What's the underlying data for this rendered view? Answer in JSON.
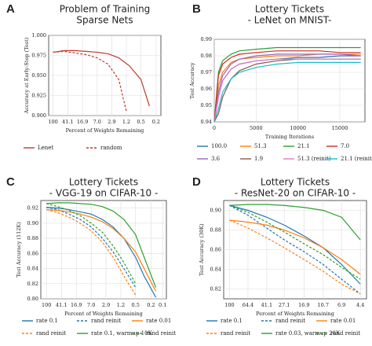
{
  "chart_data": [
    {
      "type": "line",
      "panel_label": "A",
      "title": [
        "Problem of Training",
        "Sparse Nets"
      ],
      "x_label": "Percent of Weights Remaining",
      "y_label": "Accuracy at Early-Stop (Test)",
      "x_log": true,
      "xlim": [
        130,
        0.15
      ],
      "ylim": [
        0.9,
        1.0
      ],
      "grid": true,
      "xticks": [
        100,
        41.1,
        16.9,
        {
          "value": 7.0,
          "label": "7.0"
        },
        2.9,
        1.2,
        0.5,
        0.2
      ],
      "yticks": [
        {
          "value": 0.9,
          "label": "0.900"
        },
        {
          "value": 0.925,
          "label": "0.925"
        },
        {
          "value": 0.95,
          "label": "0.950"
        },
        {
          "value": 0.975,
          "label": "0.975"
        },
        {
          "value": 1.0,
          "label": "1.000"
        }
      ],
      "series": [
        {
          "name": "Lenet",
          "color": "#c0392b",
          "dash": false,
          "x": [
            100,
            51.3,
            26.3,
            13.5,
            7.0,
            3.6,
            1.9,
            1.0,
            0.5,
            0.3
          ],
          "values": [
            0.979,
            0.981,
            0.981,
            0.98,
            0.979,
            0.977,
            0.972,
            0.962,
            0.945,
            0.912
          ]
        },
        {
          "name": "random",
          "color": "#c0392b",
          "dash": true,
          "x": [
            100,
            51.3,
            26.3,
            13.5,
            7.0,
            3.6,
            1.9,
            1.2
          ],
          "values": [
            0.979,
            0.98,
            0.978,
            0.976,
            0.972,
            0.964,
            0.945,
            0.905
          ]
        }
      ]
    },
    {
      "type": "line",
      "panel_label": "B",
      "title": [
        "Lottery Tickets",
        "- LeNet on MNIST-"
      ],
      "x_label": "Training Iterations",
      "y_label": "Test Accuracy",
      "x_log": false,
      "xlim": [
        0,
        18000
      ],
      "ylim": [
        0.94,
        0.99
      ],
      "grid": true,
      "xticks": [
        0,
        5000,
        10000,
        15000
      ],
      "yticks": [
        0.94,
        0.95,
        0.96,
        0.97,
        0.98,
        0.99
      ],
      "series": [
        {
          "name": "100.0",
          "color": "#1f77b4",
          "dash": false,
          "x": [
            0,
            500,
            1000,
            2000,
            3000,
            5000,
            7500,
            10000,
            12500,
            15000,
            17500
          ],
          "values": [
            0.94,
            0.955,
            0.965,
            0.972,
            0.975,
            0.977,
            0.978,
            0.979,
            0.979,
            0.98,
            0.98
          ]
        },
        {
          "name": "51.3",
          "color": "#ff7f0e",
          "dash": false,
          "x": [
            0,
            500,
            1000,
            2000,
            3000,
            5000,
            7500,
            10000,
            12500,
            15000,
            17500
          ],
          "values": [
            0.94,
            0.962,
            0.97,
            0.976,
            0.978,
            0.979,
            0.98,
            0.98,
            0.981,
            0.981,
            0.981
          ]
        },
        {
          "name": "21.1",
          "color": "#2ca02c",
          "dash": false,
          "x": [
            0,
            500,
            1000,
            2000,
            3000,
            5000,
            7500,
            10000,
            12500,
            15000,
            17500
          ],
          "values": [
            0.94,
            0.97,
            0.977,
            0.981,
            0.983,
            0.984,
            0.985,
            0.985,
            0.985,
            0.985,
            0.985
          ]
        },
        {
          "name": "7.0",
          "color": "#d62728",
          "dash": false,
          "x": [
            0,
            500,
            1000,
            2000,
            3000,
            5000,
            7500,
            10000,
            12500,
            15000,
            17500
          ],
          "values": [
            0.94,
            0.968,
            0.975,
            0.979,
            0.981,
            0.982,
            0.983,
            0.983,
            0.983,
            0.982,
            0.982
          ]
        },
        {
          "name": "3.6",
          "color": "#9467bd",
          "dash": false,
          "x": [
            0,
            500,
            1000,
            2000,
            3000,
            5000,
            7500,
            10000,
            12500,
            15000,
            17500
          ],
          "values": [
            0.94,
            0.958,
            0.968,
            0.975,
            0.978,
            0.98,
            0.981,
            0.981,
            0.981,
            0.981,
            0.98
          ]
        },
        {
          "name": "1.9",
          "color": "#8c564b",
          "dash": false,
          "x": [
            0,
            500,
            1000,
            2000,
            3000,
            5000,
            7500,
            10000,
            12500,
            15000,
            17500
          ],
          "values": [
            0.94,
            0.945,
            0.955,
            0.966,
            0.971,
            0.975,
            0.977,
            0.978,
            0.978,
            0.978,
            0.978
          ]
        },
        {
          "name": "51.3 (reinit)",
          "color": "#e377c2",
          "dash": false,
          "x": [
            0,
            500,
            1000,
            2000,
            3000,
            5000,
            7500,
            10000,
            12500,
            15000,
            17500
          ],
          "values": [
            0.94,
            0.955,
            0.965,
            0.972,
            0.975,
            0.977,
            0.978,
            0.978,
            0.978,
            0.978,
            0.978
          ]
        },
        {
          "name": "21.1 (reinit)",
          "color": "#17becf",
          "dash": false,
          "x": [
            0,
            500,
            1000,
            2000,
            3000,
            5000,
            7500,
            10000,
            12500,
            15000,
            17500
          ],
          "values": [
            0.94,
            0.948,
            0.958,
            0.966,
            0.97,
            0.973,
            0.975,
            0.976,
            0.976,
            0.976,
            0.976
          ]
        }
      ]
    },
    {
      "type": "line",
      "panel_label": "C",
      "title": [
        "Lottery Tickets",
        "- VGG-19 on CIFAR-10 -"
      ],
      "x_label": "Percent of Weights Remaining",
      "y_label": "Test Accuracy (112K)",
      "x_log": true,
      "xlim": [
        140,
        0.08
      ],
      "ylim": [
        0.8,
        0.93
      ],
      "grid": true,
      "xticks": [
        100,
        41.1,
        16.9,
        {
          "value": 7.0,
          "label": "7.0"
        },
        2.9,
        1.2,
        0.5,
        0.2,
        0.1
      ],
      "yticks": [
        {
          "value": 0.8,
          "label": "0.80"
        },
        0.82,
        0.84,
        0.86,
        0.88,
        {
          "value": 0.9,
          "label": "0.90"
        },
        0.92
      ],
      "series": [
        {
          "name": "rate 0.1",
          "color": "#1f77b4",
          "dash": false,
          "x": [
            100,
            51.3,
            26.3,
            13.5,
            7.0,
            3.6,
            1.9,
            1.0,
            0.5,
            0.3,
            0.15
          ],
          "values": [
            0.921,
            0.92,
            0.918,
            0.915,
            0.912,
            0.905,
            0.895,
            0.88,
            0.855,
            0.83,
            0.802
          ]
        },
        {
          "name": "rand reinit",
          "color": "#1f77b4",
          "dash": true,
          "x": [
            100,
            51.3,
            26.3,
            13.5,
            7.0,
            3.6,
            1.9,
            1.0,
            0.5
          ],
          "values": [
            0.921,
            0.918,
            0.912,
            0.905,
            0.895,
            0.88,
            0.862,
            0.84,
            0.815
          ]
        },
        {
          "name": "rate 0.01",
          "color": "#ff7f0e",
          "dash": false,
          "x": [
            100,
            51.3,
            26.3,
            13.5,
            7.0,
            3.6,
            1.9,
            1.0,
            0.5,
            0.3,
            0.15
          ],
          "values": [
            0.918,
            0.917,
            0.915,
            0.912,
            0.908,
            0.902,
            0.893,
            0.88,
            0.862,
            0.84,
            0.81
          ]
        },
        {
          "name": "rand reinit",
          "color": "#ff7f0e",
          "dash": true,
          "x": [
            100,
            51.3,
            26.3,
            13.5,
            7.0,
            3.6,
            1.9,
            1.0,
            0.5
          ],
          "values": [
            0.918,
            0.914,
            0.908,
            0.9,
            0.89,
            0.875,
            0.855,
            0.83,
            0.805
          ]
        },
        {
          "name": "rate 0.1, warmup 10K",
          "color": "#2ca02c",
          "dash": false,
          "x": [
            100,
            51.3,
            26.3,
            13.5,
            7.0,
            3.6,
            1.9,
            1.0,
            0.5,
            0.3,
            0.15
          ],
          "values": [
            0.926,
            0.927,
            0.927,
            0.926,
            0.925,
            0.922,
            0.916,
            0.905,
            0.885,
            0.855,
            0.815
          ]
        },
        {
          "name": "rand reinit",
          "color": "#2ca02c",
          "dash": true,
          "x": [
            100,
            51.3,
            26.3,
            13.5,
            7.0,
            3.6,
            1.9,
            1.0,
            0.5
          ],
          "values": [
            0.926,
            0.922,
            0.917,
            0.91,
            0.9,
            0.888,
            0.87,
            0.848,
            0.82
          ]
        }
      ]
    },
    {
      "type": "line",
      "panel_label": "D",
      "title": [
        "Lottery Tickets",
        "- ResNet-20 on CIFAR-10 -"
      ],
      "x_label": "Percent of Weights Remaining",
      "y_label": "Test Accuracy (30K)",
      "x_log": true,
      "xlim": [
        115,
        3.8
      ],
      "ylim": [
        0.81,
        0.91
      ],
      "grid": true,
      "xticks": [
        100,
        64.4,
        41.1,
        27.1,
        16.9,
        10.7,
        6.9,
        4.4
      ],
      "yticks": [
        0.82,
        0.84,
        0.86,
        0.88,
        {
          "value": 0.9,
          "label": "0.90"
        }
      ],
      "series": [
        {
          "name": "rate 0.1",
          "color": "#1f77b4",
          "dash": false,
          "x": [
            100,
            64.4,
            41.1,
            27.1,
            16.9,
            10.7,
            6.9,
            4.4
          ],
          "values": [
            0.905,
            0.9,
            0.893,
            0.885,
            0.874,
            0.862,
            0.845,
            0.825
          ]
        },
        {
          "name": "rand reinit",
          "color": "#1f77b4",
          "dash": true,
          "x": [
            100,
            64.4,
            41.1,
            27.1,
            16.9,
            10.7,
            6.9,
            4.4
          ],
          "values": [
            0.905,
            0.895,
            0.882,
            0.87,
            0.858,
            0.845,
            0.83,
            0.815
          ]
        },
        {
          "name": "rate 0.01",
          "color": "#ff7f0e",
          "dash": false,
          "x": [
            100,
            64.4,
            41.1,
            27.1,
            16.9,
            10.7,
            6.9,
            4.4
          ],
          "values": [
            0.89,
            0.888,
            0.885,
            0.88,
            0.872,
            0.862,
            0.85,
            0.835
          ]
        },
        {
          "name": "rand reinit",
          "color": "#ff7f0e",
          "dash": true,
          "x": [
            100,
            64.4,
            41.1,
            27.1,
            16.9,
            10.7,
            6.9,
            4.4
          ],
          "values": [
            0.89,
            0.882,
            0.872,
            0.862,
            0.85,
            0.838,
            0.825,
            0.815
          ]
        },
        {
          "name": "rate 0.03, warmup 20K",
          "color": "#2ca02c",
          "dash": false,
          "x": [
            100,
            64.4,
            41.1,
            27.1,
            16.9,
            10.7,
            6.9,
            4.4
          ],
          "values": [
            0.905,
            0.906,
            0.906,
            0.905,
            0.903,
            0.9,
            0.893,
            0.87
          ]
        },
        {
          "name": "rand reinit",
          "color": "#2ca02c",
          "dash": true,
          "x": [
            100,
            64.4,
            41.1,
            27.1,
            16.9,
            10.7,
            6.9,
            4.4
          ],
          "values": [
            0.905,
            0.898,
            0.888,
            0.878,
            0.866,
            0.855,
            0.842,
            0.83
          ]
        }
      ]
    }
  ]
}
